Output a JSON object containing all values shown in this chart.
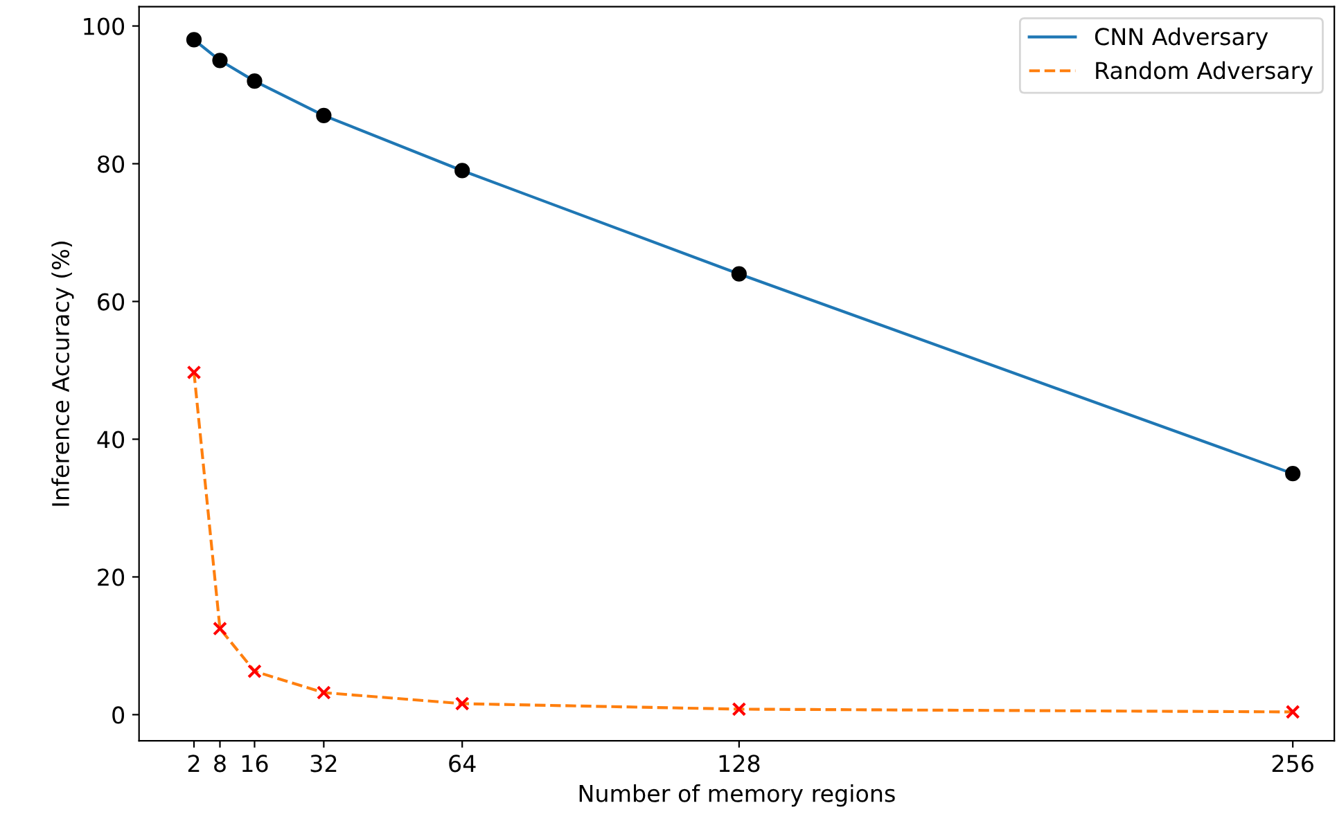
{
  "chart_data": {
    "type": "line",
    "xlabel": "Number of memory regions",
    "ylabel": "Inference Accuracy (%)",
    "x": [
      2,
      8,
      16,
      32,
      64,
      128,
      256
    ],
    "series": [
      {
        "name": "CNN Adversary",
        "color": "#1f77b4",
        "line_style": "solid",
        "values": [
          98,
          95,
          92,
          87,
          79,
          64,
          35
        ]
      },
      {
        "name": "Random Adversary",
        "color": "#ff7f0e",
        "line_style": "dashed",
        "values": [
          49.7,
          12.5,
          6.3,
          3.2,
          1.6,
          0.8,
          0.4
        ]
      },
      {
        "type": "scatter",
        "color": "#000000",
        "marker": "circle",
        "values": [
          98,
          95,
          92,
          87,
          79,
          64,
          35
        ]
      },
      {
        "type": "scatter",
        "color": "#ff0000",
        "marker": "cross",
        "values": [
          49.7,
          12.5,
          6.3,
          3.2,
          1.6,
          0.8,
          0.4
        ]
      }
    ],
    "xlim": [
      -10.7,
      265.6
    ],
    "xticks": [
      2,
      8,
      16,
      32,
      64,
      128,
      256
    ],
    "ylim": [
      -3.8,
      102.8
    ],
    "yticks": [
      0,
      20,
      40,
      60,
      80,
      100
    ],
    "grid": false,
    "legend": "top right"
  }
}
